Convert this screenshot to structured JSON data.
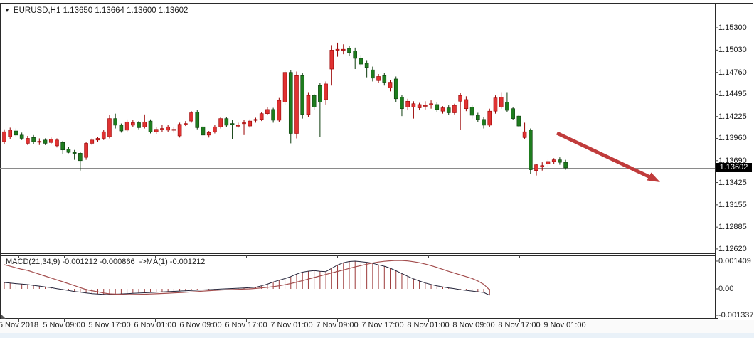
{
  "title": {
    "symbol_period": "EURUSD,H1",
    "quotes": "1.13650 1.13664 1.13600 1.13602",
    "dropdown_icon": "symbol-dropdown"
  },
  "indicator_label": "MACD(21,34,9) -0.001212 -0.000866  ->MA(1) -0.001212",
  "current_price_badge": "1.13602",
  "price_axis_labels": [
    "1.15300",
    "1.15030",
    "1.14760",
    "1.14495",
    "1.14225",
    "1.13960",
    "1.13690",
    "1.13425",
    "1.13155",
    "1.12885",
    "1.12620"
  ],
  "macd_axis_labels": [
    "0.001409",
    "0.00",
    "-0.001337"
  ],
  "time_axis_labels": [
    "5 Nov 2018",
    "5 Nov 09:00",
    "5 Nov 17:00",
    "6 Nov 01:00",
    "6 Nov 09:00",
    "6 Nov 17:00",
    "7 Nov 01:00",
    "7 Nov 09:00",
    "7 Nov 17:00",
    "8 Nov 01:00",
    "8 Nov 09:00",
    "8 Nov 17:00",
    "9 Nov 01:00"
  ],
  "colors": {
    "bull_fill": "#e03232",
    "bull_border": "#990000",
    "bear_fill": "#1e7c1e",
    "bear_border": "#0d3d0d",
    "arrow": "#c03b3b",
    "macd_histogram": "#9c3a3a",
    "macd_line": "#24243a",
    "signal_line": "#a34d4d",
    "badge_bg": "#000000",
    "badge_text": "#ffffff",
    "price_line": "#8a8a8a",
    "border": "#2a2a2a",
    "bottom_strip": "#e9f1f8",
    "label_band": "#fafafa"
  },
  "chart_data": {
    "type": "candlestick",
    "symbol": "EURUSD",
    "timeframe": "H1",
    "quote_open": 1.1365,
    "quote_high": 1.13664,
    "quote_low": 1.136,
    "quote_close": 1.13602,
    "current_price": 1.13602,
    "y_axis_range": [
      1.1262,
      1.153
    ],
    "x_axis_ticks": [
      "5 Nov 2018",
      "5 Nov 09:00",
      "5 Nov 17:00",
      "6 Nov 01:00",
      "6 Nov 09:00",
      "6 Nov 17:00",
      "7 Nov 01:00",
      "7 Nov 09:00",
      "7 Nov 17:00",
      "8 Nov 01:00",
      "8 Nov 09:00",
      "8 Nov 17:00",
      "9 Nov 01:00"
    ],
    "candles_ohlc": [
      [
        1.1392,
        1.1407,
        1.1389,
        1.1404
      ],
      [
        1.1398,
        1.1409,
        1.1395,
        1.1406
      ],
      [
        1.1405,
        1.1408,
        1.1398,
        1.14
      ],
      [
        1.14,
        1.1403,
        1.1394,
        1.1396
      ],
      [
        1.139,
        1.1399,
        1.1388,
        1.1396
      ],
      [
        1.1397,
        1.14,
        1.1389,
        1.1392
      ],
      [
        1.1392,
        1.1396,
        1.1388,
        1.13925
      ],
      [
        1.1394,
        1.1396,
        1.1388,
        1.139
      ],
      [
        1.1391,
        1.1397,
        1.1389,
        1.1395
      ],
      [
        1.1387,
        1.1396,
        1.1385,
        1.1394
      ],
      [
        1.1391,
        1.1393,
        1.1377,
        1.1382
      ],
      [
        1.1383,
        1.1386,
        1.1378,
        1.1379
      ],
      [
        1.1379,
        1.1382,
        1.137,
        1.1378
      ],
      [
        1.1378,
        1.138,
        1.1357,
        1.1369
      ],
      [
        1.1373,
        1.1392,
        1.137,
        1.139
      ],
      [
        1.139,
        1.1396,
        1.1388,
        1.1394
      ],
      [
        1.1394,
        1.1398,
        1.1392,
        1.1396
      ],
      [
        1.1396,
        1.1406,
        1.1394,
        1.1404
      ],
      [
        1.1398,
        1.1424,
        1.1396,
        1.142
      ],
      [
        1.142,
        1.1426,
        1.1408,
        1.1412
      ],
      [
        1.1412,
        1.1414,
        1.1403,
        1.1405
      ],
      [
        1.1406,
        1.1419,
        1.1404,
        1.1416
      ],
      [
        1.1412,
        1.1418,
        1.141,
        1.1415
      ],
      [
        1.1415,
        1.1417,
        1.1407,
        1.1409
      ],
      [
        1.141,
        1.1425,
        1.1408,
        1.1416
      ],
      [
        1.1417,
        1.1419,
        1.1402,
        1.1404
      ],
      [
        1.1404,
        1.141,
        1.1401,
        1.1407
      ],
      [
        1.1408,
        1.1412,
        1.1404,
        1.1408
      ],
      [
        1.1406,
        1.1412,
        1.1404,
        1.141
      ],
      [
        1.1407,
        1.141,
        1.1403,
        1.1407
      ],
      [
        1.1399,
        1.1415,
        1.1397,
        1.1413
      ],
      [
        1.1414,
        1.1417,
        1.1411,
        1.1414
      ],
      [
        1.1417,
        1.1429,
        1.1415,
        1.1427
      ],
      [
        1.1428,
        1.143,
        1.1407,
        1.1409
      ],
      [
        1.141,
        1.1412,
        1.1396,
        1.14
      ],
      [
        1.14,
        1.1405,
        1.1397,
        1.1403
      ],
      [
        1.1404,
        1.1412,
        1.1402,
        1.141
      ],
      [
        1.141,
        1.1422,
        1.1408,
        1.142
      ],
      [
        1.142,
        1.1422,
        1.141,
        1.1412
      ],
      [
        1.1414,
        1.1418,
        1.1395,
        1.1413
      ],
      [
        1.1412,
        1.1415,
        1.1409,
        1.1412
      ],
      [
        1.1414,
        1.1418,
        1.14,
        1.1415
      ],
      [
        1.1411,
        1.1419,
        1.1409,
        1.1417
      ],
      [
        1.1418,
        1.1421,
        1.1415,
        1.1419
      ],
      [
        1.1419,
        1.1428,
        1.1417,
        1.1426
      ],
      [
        1.1426,
        1.1434,
        1.1424,
        1.1431
      ],
      [
        1.1431,
        1.1433,
        1.1415,
        1.1418
      ],
      [
        1.1418,
        1.1445,
        1.1416,
        1.1442
      ],
      [
        1.144,
        1.1479,
        1.1436,
        1.1476
      ],
      [
        1.1476,
        1.1479,
        1.139,
        1.1402
      ],
      [
        1.1402,
        1.1477,
        1.1396,
        1.1472
      ],
      [
        1.1472,
        1.1475,
        1.142,
        1.1425
      ],
      [
        1.1425,
        1.1452,
        1.1422,
        1.1448
      ],
      [
        1.1448,
        1.145,
        1.143,
        1.1434
      ],
      [
        1.146,
        1.1463,
        1.1398,
        1.144
      ],
      [
        1.1443,
        1.1465,
        1.1437,
        1.1462
      ],
      [
        1.148,
        1.1509,
        1.146,
        1.1503
      ],
      [
        1.1503,
        1.1512,
        1.1495,
        1.1504
      ],
      [
        1.1504,
        1.151,
        1.1498,
        1.1504
      ],
      [
        1.1505,
        1.1508,
        1.1496,
        1.15
      ],
      [
        1.1502,
        1.1506,
        1.148,
        1.1493
      ],
      [
        1.1493,
        1.1497,
        1.1483,
        1.1486
      ],
      [
        1.1487,
        1.149,
        1.147,
        1.1482
      ],
      [
        1.1479,
        1.1483,
        1.1465,
        1.1469
      ],
      [
        1.1466,
        1.1474,
        1.1463,
        1.1471
      ],
      [
        1.1472,
        1.1475,
        1.146,
        1.1464
      ],
      [
        1.1457,
        1.1467,
        1.1453,
        1.1464
      ],
      [
        1.1468,
        1.1471,
        1.144,
        1.1444
      ],
      [
        1.1446,
        1.1449,
        1.1423,
        1.1432
      ],
      [
        1.1434,
        1.1444,
        1.143,
        1.1441
      ],
      [
        1.1434,
        1.1441,
        1.142,
        1.1438
      ],
      [
        1.1433,
        1.1439,
        1.143,
        1.1437
      ],
      [
        1.1436,
        1.1441,
        1.1431,
        1.1436
      ],
      [
        1.1437,
        1.1442,
        1.1432,
        1.1438
      ],
      [
        1.1437,
        1.144,
        1.1428,
        1.1431
      ],
      [
        1.1429,
        1.1435,
        1.1426,
        1.1433
      ],
      [
        1.1433,
        1.1436,
        1.1424,
        1.1427
      ],
      [
        1.1427,
        1.1438,
        1.1425,
        1.1436
      ],
      [
        1.1441,
        1.1451,
        1.1406,
        1.1448
      ],
      [
        1.1432,
        1.1447,
        1.1429,
        1.1443
      ],
      [
        1.1434,
        1.1437,
        1.142,
        1.1424
      ],
      [
        1.1424,
        1.1427,
        1.1416,
        1.1419
      ],
      [
        1.1419,
        1.1422,
        1.1408,
        1.1412
      ],
      [
        1.1412,
        1.1432,
        1.141,
        1.1429
      ],
      [
        1.1429,
        1.1448,
        1.1426,
        1.1445
      ],
      [
        1.1434,
        1.1452,
        1.1432,
        1.1446
      ],
      [
        1.144,
        1.1452,
        1.1428,
        1.143
      ],
      [
        1.1432,
        1.1434,
        1.1418,
        1.142
      ],
      [
        1.1423,
        1.1425,
        1.141,
        1.1411
      ],
      [
        1.1397,
        1.1415,
        1.1395,
        1.1404
      ],
      [
        1.1406,
        1.1408,
        1.1353,
        1.1358
      ],
      [
        1.1357,
        1.1365,
        1.1351,
        1.1364
      ],
      [
        1.1362,
        1.1367,
        1.1357,
        1.1363
      ],
      [
        1.1365,
        1.137,
        1.1362,
        1.1368
      ],
      [
        1.1368,
        1.1372,
        1.1365,
        1.137
      ],
      [
        1.137,
        1.1373,
        1.1364,
        1.1367
      ],
      [
        1.1367,
        1.137,
        1.1358,
        1.13602
      ]
    ],
    "indicator": {
      "type": "MACD",
      "params": [
        21,
        34,
        9
      ],
      "macd_value": -0.001212,
      "signal_value": -0.000866,
      "ma1_value": -0.001212,
      "axis_range": [
        -0.001337,
        0.001409
      ],
      "histogram": [
        0.000325,
        0.000296,
        0.000267,
        0.000242,
        0.000217,
        0.000177,
        0.000141,
        0.000101,
        6.1e-05,
        1.1e-05,
        -3.6e-05,
        -8.3e-05,
        -0.000134,
        -0.000166,
        -0.000206,
        -0.000242,
        -0.000264,
        -0.000278,
        -0.000289,
        -0.000271,
        -0.000256,
        -0.000242,
        -0.000227,
        -0.000213,
        -0.000199,
        -0.000184,
        -0.00017,
        -0.000155,
        -0.000141,
        -0.000126,
        -0.000112,
        -9.7e-05,
        -8.3e-05,
        -6.9e-05,
        -5.4e-05,
        -4e-05,
        -2.5e-05,
        -1.1e-05,
        4e-06,
        1.8e-05,
        3.2e-05,
        4.7e-05,
        6.1e-05,
        8.3e-05,
        0.000155,
        0.000238,
        0.00035,
        0.00044,
        0.000523,
        0.000625,
        0.000751,
        0.000848,
        0.000899,
        0.000931,
        0.000895,
        0.000877,
        0.001047,
        0.001209,
        0.00133,
        0.00139,
        0.001409,
        0.00138,
        0.00135,
        0.0013,
        0.00122,
        0.00115,
        0.00105,
        0.00092,
        0.00078,
        0.00064,
        0.00051,
        0.0004,
        0.0003,
        0.00022,
        0.00015,
        0.0001,
        5e-05,
        1e-05,
        -4e-05,
        -7.6e-05,
        -0.000112,
        -0.000148,
        -0.000181,
        -0.000325
      ],
      "signal": [
        0.001227,
        0.001152,
        0.001072,
        0.000996,
        0.000939,
        0.000841,
        0.000747,
        0.00065,
        0.000552,
        0.000458,
        0.000361,
        0.000264,
        0.000166,
        6.1e-05,
        -3.6e-05,
        -9.4e-05,
        -0.000152,
        -0.000209,
        -0.000253,
        -0.000264,
        -0.000278,
        -0.000289,
        -0.000285,
        -0.000278,
        -0.000271,
        -0.00026,
        -0.000249,
        -0.000235,
        -0.00022,
        -0.000206,
        -0.000191,
        -0.000173,
        -0.000155,
        -0.000137,
        -0.000116,
        -9.4e-05,
        -7.6e-05,
        -6.1e-05,
        -4.7e-05,
        -3.6e-05,
        -2.5e-05,
        -1.1e-05,
        0.0,
        2.2e-05,
        5.1e-05,
        7.9e-05,
        0.000112,
        0.000155,
        0.000209,
        0.000274,
        0.000343,
        0.000419,
        0.000498,
        0.000578,
        0.000657,
        0.000733,
        0.000809,
        0.000884,
        0.00096,
        0.00104,
        0.001115,
        0.001184,
        0.001253,
        0.001314,
        0.001364,
        0.001401,
        0.001426,
        0.001444,
        0.00144,
        0.00142,
        0.00138,
        0.00133,
        0.00126,
        0.00118,
        0.00109,
        0.00099,
        0.00089,
        0.0008,
        0.00071,
        0.00062,
        0.00053,
        0.0004,
        0.00023,
        -5e-05
      ]
    },
    "annotation": {
      "type": "trend-arrow",
      "direction": "down"
    }
  }
}
